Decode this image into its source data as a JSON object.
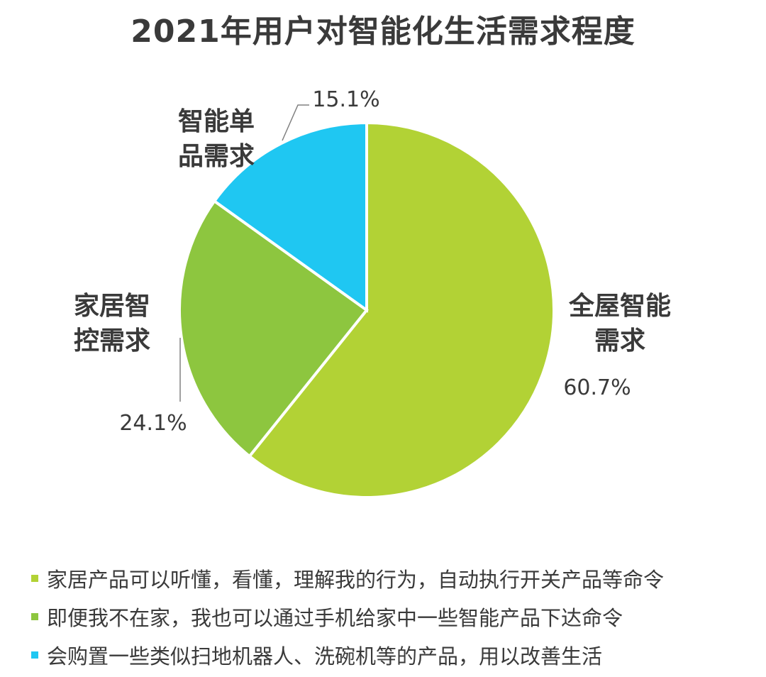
{
  "chart_data": {
    "type": "pie",
    "title": "2021年用户对智能化生活需求程度",
    "slices": [
      {
        "label_lines": [
          "全屋智能",
          "需求"
        ],
        "value": 60.7,
        "value_label": "60.7%",
        "color": "#b2d235"
      },
      {
        "label_lines": [
          "家居智",
          "控需求"
        ],
        "value": 24.1,
        "value_label": "24.1%",
        "color": "#8dc63f"
      },
      {
        "label_lines": [
          "智能单",
          "品需求"
        ],
        "value": 15.1,
        "value_label": "15.1%",
        "color": "#1fc7f2"
      }
    ],
    "legend": [
      {
        "text": "家居产品可以听懂，看懂，理解我的行为，自动执行开关产品等命令",
        "color": "#b2d235"
      },
      {
        "text": "即便我不在家，我也可以通过手机给家中一些智能产品下达命令",
        "color": "#8dc63f"
      },
      {
        "text": "会购置一些类似扫地机器人、洗碗机等的产品，用以改善生活",
        "color": "#1fc7f2"
      }
    ]
  }
}
